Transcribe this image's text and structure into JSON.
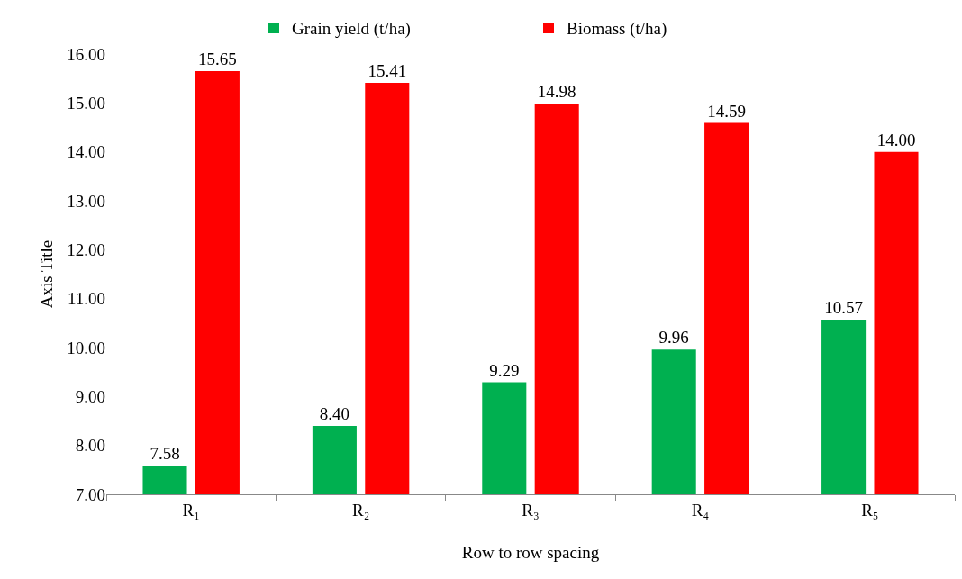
{
  "chart_data": {
    "type": "bar",
    "xlabel": "Row to row spacing",
    "ylabel": "Axis Title",
    "categories": [
      "R₁",
      "R₂",
      "R₃",
      "R₄",
      "R₅"
    ],
    "series": [
      {
        "name": "Grain yield (t/ha)",
        "color": "#00b050",
        "values": [
          7.58,
          8.4,
          9.29,
          9.96,
          10.57
        ],
        "value_labels": [
          "7.58",
          "8.40",
          "9.29",
          "9.96",
          "10.57"
        ]
      },
      {
        "name": "Biomass (t/ha)",
        "color": "#ff0000",
        "values": [
          15.65,
          15.41,
          14.98,
          14.59,
          14.0
        ],
        "value_labels": [
          "15.65",
          "15.41",
          "14.98",
          "14.59",
          "14.00"
        ]
      }
    ],
    "ylim": [
      7,
      16
    ],
    "yticks": [
      {
        "value": 7,
        "label": "7.00"
      },
      {
        "value": 8,
        "label": "8.00"
      },
      {
        "value": 9,
        "label": "9.00"
      },
      {
        "value": 10,
        "label": "10.00"
      },
      {
        "value": 11,
        "label": "11.00"
      },
      {
        "value": 12,
        "label": "12.00"
      },
      {
        "value": 13,
        "label": "13.00"
      },
      {
        "value": 14,
        "label": "14.00"
      },
      {
        "value": 15,
        "label": "15.00"
      },
      {
        "value": 16,
        "label": "16.00"
      }
    ],
    "grid": false,
    "legend": "top"
  }
}
